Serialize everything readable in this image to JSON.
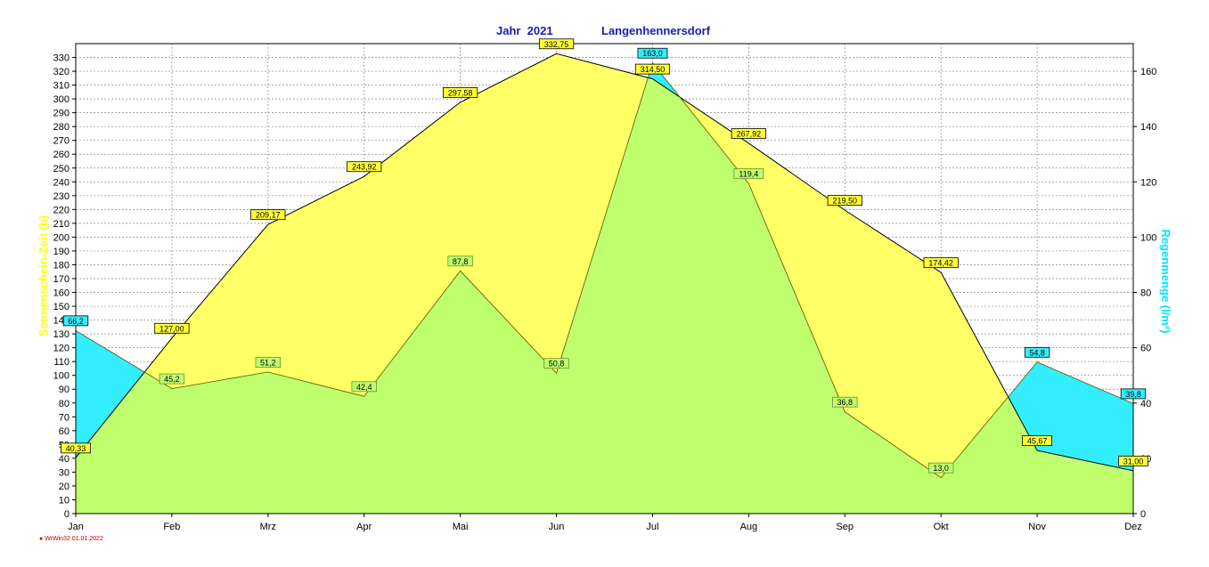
{
  "header": {
    "year": "Jahr  2021",
    "station": "Langenhennersdorf"
  },
  "footer": {
    "program": "WrWin32",
    "date": "01.01.2022"
  },
  "colors": {
    "sunshine_fill": "#ffff66",
    "rain_fill": "#33eeff",
    "overlap_fill": "#bfff6e",
    "sunshine_line": "#000000",
    "rain_line": "#555500",
    "sunshine_label_bg": "#ffff33",
    "rain_label_bg": "#33eeff",
    "overlap_label_bg": "#bfff6e",
    "left_axis_title": "#ffff00",
    "right_axis_title": "#00e5ff",
    "title": "#1a1ab4"
  },
  "chart_data": {
    "type": "area",
    "categories": [
      "Jan",
      "Feb",
      "Mrz",
      "Apr",
      "Mai",
      "Jun",
      "Jul",
      "Aug",
      "Sep",
      "Okt",
      "Nov",
      "Dez"
    ],
    "series": [
      {
        "name": "Sonnenschein-Zeit  (h)",
        "axis": "left",
        "values": [
          40.33,
          127.0,
          209.17,
          243.92,
          297.58,
          332.75,
          314.5,
          267.92,
          219.5,
          174.42,
          45.67,
          31.0
        ],
        "labels": [
          "40,33",
          "127,00",
          "209,17",
          "243,92",
          "297,58",
          "332,75",
          "314,50",
          "267,92",
          "219,50",
          "174,42",
          "45,67",
          "31,00"
        ]
      },
      {
        "name": "Regenmenge  (l/m²)",
        "axis": "right",
        "values": [
          66.2,
          45.2,
          51.2,
          42.4,
          87.8,
          50.8,
          163.0,
          119.4,
          36.8,
          13.0,
          54.8,
          39.8
        ],
        "labels": [
          "66,2",
          "45,2",
          "51,2",
          "42,4",
          "87,8",
          "50,8",
          "163,0",
          "119,4",
          "36,8",
          "13,0",
          "54,8",
          "39,8"
        ]
      }
    ],
    "left_axis": {
      "label": "Sonnenschein-Zeit  (h)",
      "min": 0,
      "max": 340,
      "ticks": [
        0,
        10,
        20,
        30,
        40,
        50,
        60,
        70,
        80,
        90,
        100,
        110,
        120,
        130,
        140,
        150,
        160,
        170,
        180,
        190,
        200,
        210,
        220,
        230,
        240,
        250,
        260,
        270,
        280,
        290,
        300,
        310,
        320,
        330
      ]
    },
    "right_axis": {
      "label": "Regenmenge  (l/m²)",
      "min": 0,
      "max": 170,
      "ticks": [
        0,
        20,
        40,
        60,
        80,
        100,
        120,
        140,
        160
      ]
    },
    "grid": true
  }
}
